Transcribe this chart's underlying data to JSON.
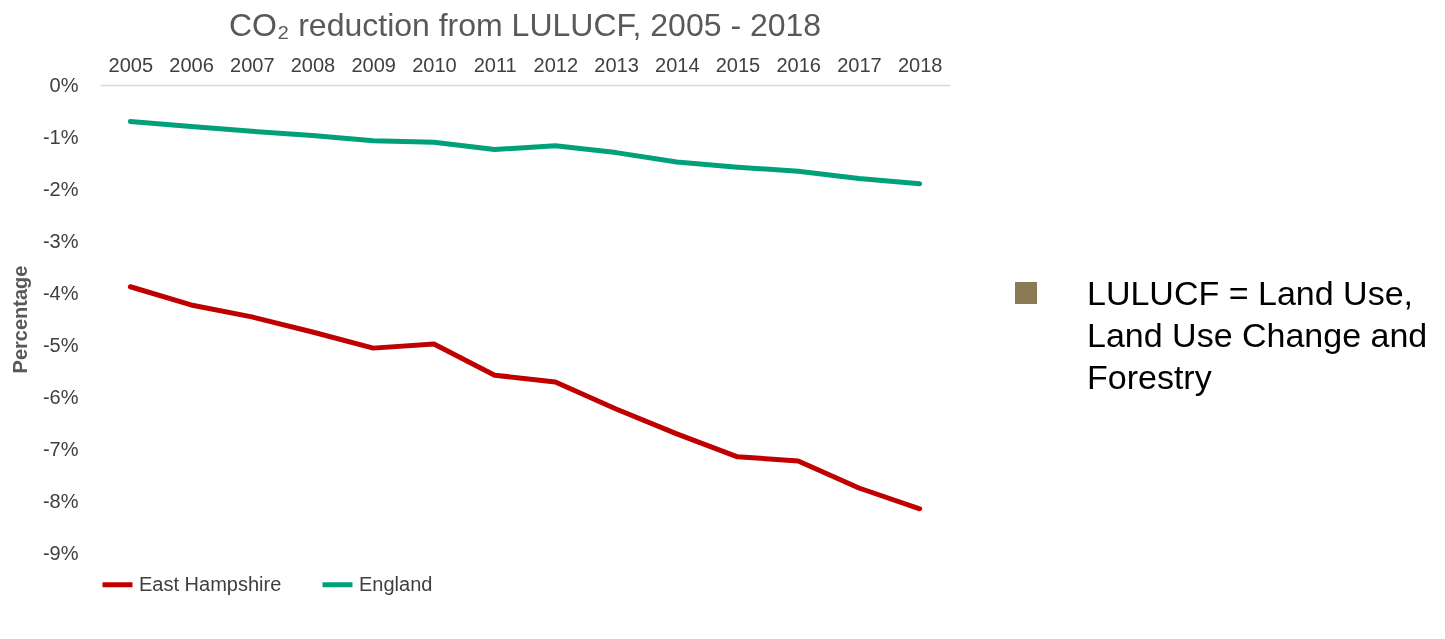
{
  "chart_data": {
    "type": "line",
    "title": "CO₂ reduction from LULUCF, 2005 - 2018",
    "ylabel": "Percentage",
    "categories": [
      "2005",
      "2006",
      "2007",
      "2008",
      "2009",
      "2010",
      "2011",
      "2012",
      "2013",
      "2014",
      "2015",
      "2016",
      "2017",
      "2018"
    ],
    "series": [
      {
        "name": "East Hampshire",
        "color": "#c00000",
        "values": [
          -3.88,
          -4.23,
          -4.46,
          -4.75,
          -5.06,
          -4.98,
          -5.58,
          -5.71,
          -6.23,
          -6.71,
          -7.15,
          -7.23,
          -7.75,
          -8.15
        ]
      },
      {
        "name": "England",
        "color": "#00a07a",
        "values": [
          -0.7,
          -0.8,
          -0.89,
          -0.97,
          -1.07,
          -1.1,
          -1.24,
          -1.17,
          -1.3,
          -1.48,
          -1.58,
          -1.66,
          -1.8,
          -1.9
        ]
      }
    ],
    "ylim": [
      -9,
      0
    ],
    "yticks": [
      {
        "value": 0,
        "label": "0%"
      },
      {
        "value": -1,
        "label": "-1%"
      },
      {
        "value": -2,
        "label": "-2%"
      },
      {
        "value": -3,
        "label": "-3%"
      },
      {
        "value": -4,
        "label": "-4%"
      },
      {
        "value": -5,
        "label": "-5%"
      },
      {
        "value": -6,
        "label": "-6%"
      },
      {
        "value": -7,
        "label": "-7%"
      },
      {
        "value": -8,
        "label": "-8%"
      },
      {
        "value": -9,
        "label": "-9%"
      }
    ],
    "grid": false,
    "legend": "bottom",
    "marker": "none",
    "line_style": "solid",
    "annotations": [
      "LULUCF = Land Use, Land Use Change and Forestry"
    ]
  }
}
